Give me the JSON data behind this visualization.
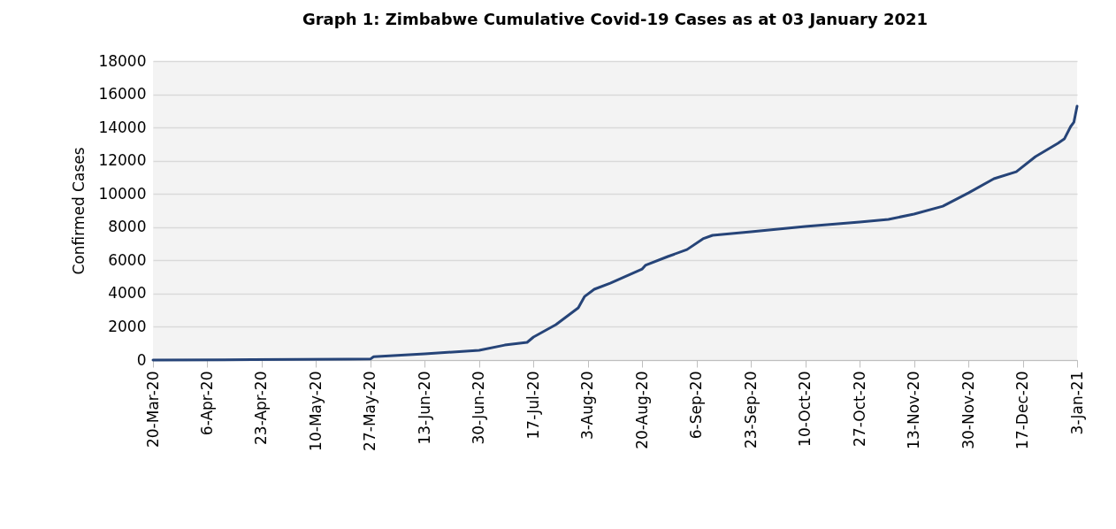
{
  "chart_data": {
    "type": "line",
    "title": "Graph 1: Zimbabwe Cumulative Covid-19 Cases as at 03 January 2021",
    "ylabel": "Confirmed Cases",
    "x": [
      "2020-03-20",
      "2020-04-20",
      "2020-05-20",
      "2020-05-27",
      "2020-05-28",
      "2020-06-13",
      "2020-06-30",
      "2020-07-08",
      "2020-07-15",
      "2020-07-17",
      "2020-07-24",
      "2020-07-31",
      "2020-08-02",
      "2020-08-05",
      "2020-08-10",
      "2020-08-20",
      "2020-08-21",
      "2020-08-28",
      "2020-09-03",
      "2020-09-08",
      "2020-09-11",
      "2020-09-23",
      "2020-10-10",
      "2020-10-27",
      "2020-11-05",
      "2020-11-13",
      "2020-11-22",
      "2020-11-30",
      "2020-12-08",
      "2020-12-15",
      "2020-12-21",
      "2020-12-28",
      "2020-12-30",
      "2021-01-01",
      "2021-01-02",
      "2021-01-03"
    ],
    "series": [
      {
        "color": "#264478",
        "values": [
          1,
          25,
          50,
          60,
          200,
          370,
          590,
          900,
          1065,
          1385,
          2130,
          3140,
          3830,
          4260,
          4630,
          5480,
          5700,
          6230,
          6650,
          7300,
          7510,
          7720,
          8040,
          8310,
          8470,
          8790,
          9260,
          10060,
          10920,
          11340,
          12250,
          13050,
          13310,
          14060,
          14320,
          15280
        ]
      }
    ],
    "ylim": [
      0,
      18000
    ],
    "yticks": [
      0,
      2000,
      4000,
      6000,
      8000,
      10000,
      12000,
      14000,
      16000,
      18000
    ],
    "xlim": [
      "2020-03-20",
      "2021-01-03"
    ],
    "xticks": [
      {
        "value": "2020-03-20",
        "label": "20-Mar-20"
      },
      {
        "value": "2020-04-06",
        "label": "6-Apr-20"
      },
      {
        "value": "2020-04-23",
        "label": "23-Apr-20"
      },
      {
        "value": "2020-05-10",
        "label": "10-May-20"
      },
      {
        "value": "2020-05-27",
        "label": "27-May-20"
      },
      {
        "value": "2020-06-13",
        "label": "13-Jun-20"
      },
      {
        "value": "2020-06-30",
        "label": "30-Jun-20"
      },
      {
        "value": "2020-07-17",
        "label": "17-Jul-20"
      },
      {
        "value": "2020-08-03",
        "label": "3-Aug-20"
      },
      {
        "value": "2020-08-20",
        "label": "20-Aug-20"
      },
      {
        "value": "2020-09-06",
        "label": "6-Sep-20"
      },
      {
        "value": "2020-09-23",
        "label": "23-Sep-20"
      },
      {
        "value": "2020-10-10",
        "label": "10-Oct-20"
      },
      {
        "value": "2020-10-27",
        "label": "27-Oct-20"
      },
      {
        "value": "2020-11-13",
        "label": "13-Nov-20"
      },
      {
        "value": "2020-11-30",
        "label": "30-Nov-20"
      },
      {
        "value": "2020-12-17",
        "label": "17-Dec-20"
      },
      {
        "value": "2021-01-03",
        "label": "3-Jan-21"
      }
    ],
    "grid": "y",
    "marker": "none",
    "line_style": "solid"
  }
}
